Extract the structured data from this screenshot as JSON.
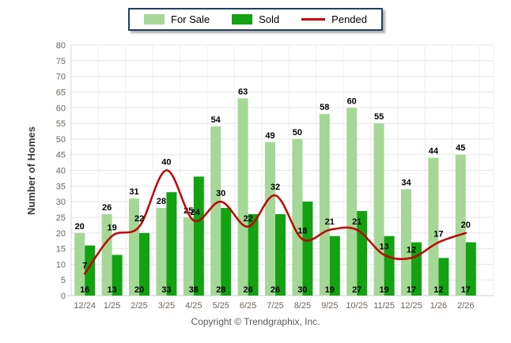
{
  "legend": {
    "items": [
      {
        "label": "For Sale",
        "type": "swatch",
        "color": "#A5D897"
      },
      {
        "label": "Sold",
        "type": "swatch",
        "color": "#12A212"
      },
      {
        "label": "Pended",
        "type": "line",
        "color": "#C00000"
      }
    ]
  },
  "footer": {
    "copyright": "Copyright © Trendgraphix, Inc."
  },
  "chart_data": {
    "type": "bar",
    "title": "",
    "xlabel": "",
    "ylabel": "Number of Homes",
    "ylim": [
      0,
      80
    ],
    "ytick_step": 5,
    "grid": true,
    "legend_position": "top",
    "categories": [
      "12/24",
      "1/25",
      "2/25",
      "3/25",
      "4/25",
      "5/25",
      "6/25",
      "7/25",
      "8/25",
      "9/25",
      "10/25",
      "11/25",
      "12/25",
      "1/26",
      "2/26"
    ],
    "series": [
      {
        "name": "For Sale",
        "type": "bar",
        "color": "#A5D897",
        "label_position": "above-bar",
        "values": [
          20,
          26,
          31,
          28,
          25,
          54,
          63,
          49,
          50,
          58,
          60,
          55,
          34,
          44,
          45
        ]
      },
      {
        "name": "Sold",
        "type": "bar",
        "color": "#12A212",
        "label_position": "bottom",
        "values": [
          16,
          13,
          20,
          33,
          38,
          28,
          26,
          26,
          30,
          19,
          27,
          19,
          17,
          12,
          17
        ]
      },
      {
        "name": "Pended",
        "type": "line",
        "color": "#C00000",
        "label_position": "above-point",
        "values": [
          7,
          19,
          22,
          40,
          24,
          30,
          22,
          32,
          18,
          21,
          21,
          13,
          12,
          17,
          20
        ]
      }
    ]
  }
}
